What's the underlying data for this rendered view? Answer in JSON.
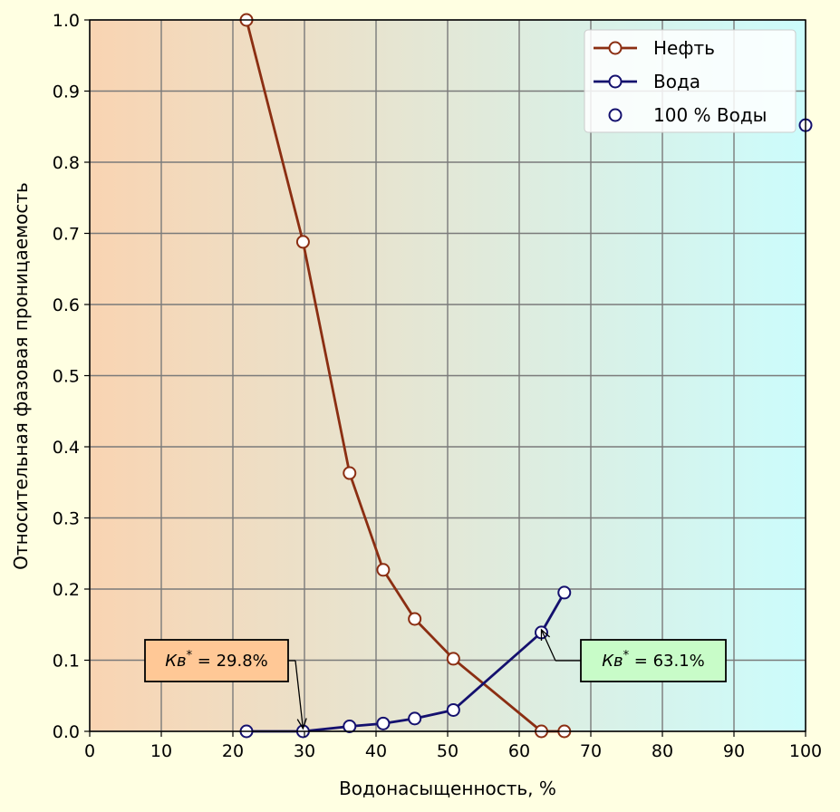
{
  "chart_data": {
    "type": "line",
    "xlabel": "Водонасыщенность, %",
    "ylabel": "Относительная фазовая проницаемость",
    "xlim": [
      0,
      100
    ],
    "ylim": [
      0,
      1.0
    ],
    "x_ticks": [
      "0",
      "10",
      "20",
      "30",
      "40",
      "50",
      "60",
      "70",
      "80",
      "90",
      "100"
    ],
    "y_ticks": [
      "0.0",
      "0.1",
      "0.2",
      "0.3",
      "0.4",
      "0.5",
      "0.6",
      "0.7",
      "0.8",
      "0.9",
      "1.0"
    ],
    "grid": true,
    "legend_position": "top-right",
    "background_gradient": [
      "#f9d4b2",
      "#ccfcfc"
    ],
    "series": [
      {
        "name": "Нефть",
        "color": "#8b2e12",
        "style": "line-marker",
        "x": [
          21.9,
          29.8,
          36.3,
          41.0,
          45.4,
          50.8,
          63.1,
          66.3
        ],
        "y": [
          1.0,
          0.688,
          0.363,
          0.227,
          0.158,
          0.102,
          0.0,
          0.0
        ]
      },
      {
        "name": "Вода",
        "color": "#14106e",
        "style": "line-marker",
        "x": [
          21.9,
          29.8,
          36.3,
          41.0,
          45.4,
          50.8,
          63.1,
          66.3
        ],
        "y": [
          0.0,
          0.0,
          0.007,
          0.011,
          0.018,
          0.03,
          0.139,
          0.195
        ]
      },
      {
        "name": "100 % Воды",
        "color": "#14106e",
        "style": "marker",
        "x": [
          100
        ],
        "y": [
          0.852
        ]
      }
    ],
    "annotations": [
      {
        "prefix": "Кв",
        "sup": "*",
        "value": " = 29.8%",
        "target_x": 29.8,
        "target_y": 0.0,
        "box_color": "#ffc896"
      },
      {
        "prefix": "Кв",
        "sup": "*",
        "value": " = 63.1%",
        "target_x": 63.1,
        "target_y": 0.139,
        "box_color": "#c8fcc8"
      }
    ]
  }
}
